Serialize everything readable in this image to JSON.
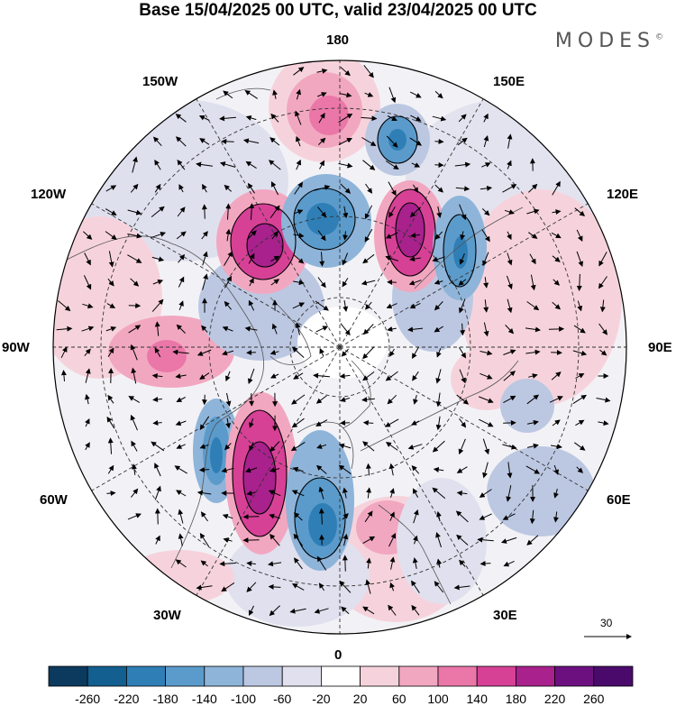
{
  "title": "Base 15/04/2025 00 UTC, valid 23/04/2025 00 UTC",
  "brand": {
    "name": "MODES",
    "mark": "©"
  },
  "map": {
    "projection": "north-polar-stereographic",
    "meridian_labels": {
      "m180": "180",
      "m150w": "150W",
      "m150e": "150E",
      "m120w": "120W",
      "m120e": "120E",
      "m90w": "90W",
      "m90e": "90E",
      "m60w": "60W",
      "m60e": "60E",
      "m30w": "30W",
      "m30e": "30E",
      "m0": "0"
    },
    "reference_vector": "30"
  },
  "colorbar": {
    "ticks": [
      "-260",
      "-220",
      "-180",
      "-140",
      "-100",
      "-60",
      "-20",
      "20",
      "60",
      "100",
      "140",
      "180",
      "220",
      "260"
    ],
    "colors": [
      "#0b3a5e",
      "#135f8f",
      "#2f7fb6",
      "#5b9bcb",
      "#8eb4d9",
      "#bcc8e2",
      "#e0e0ee",
      "#ffffff",
      "#f6d3dc",
      "#f2a7c0",
      "#ea77a8",
      "#d64196",
      "#a8218c",
      "#6c1080",
      "#4a0a6b"
    ]
  }
}
